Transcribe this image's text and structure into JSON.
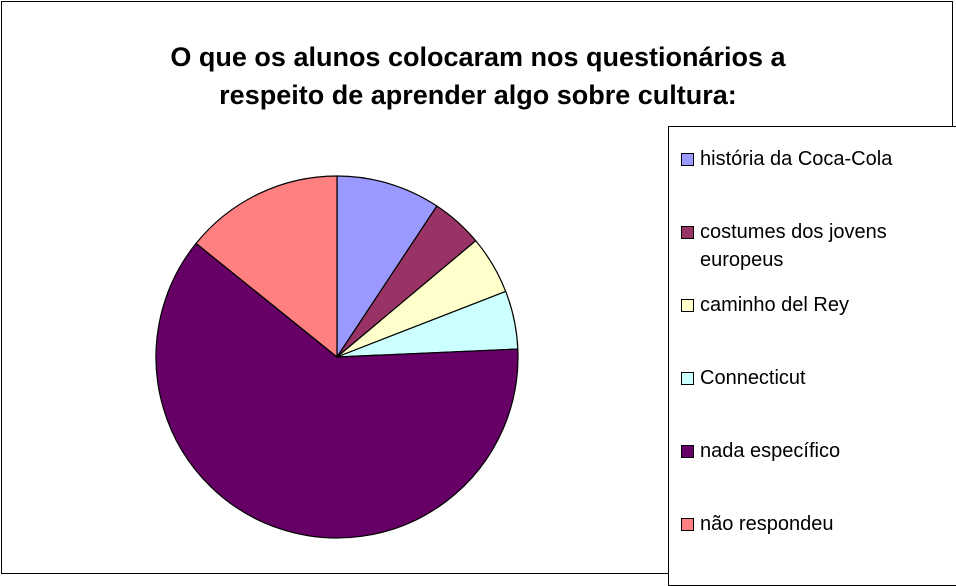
{
  "chart_data": {
    "type": "pie",
    "title": "O que os alunos colocaram nos questionários a\nrespeito de aprender algo sobre cultura:",
    "categories": [
      "história da Coca-Cola",
      "costumes dos jovens europeus",
      "caminho del Rey",
      "Connecticut",
      "nada específico",
      "não respondeu"
    ],
    "values": [
      9.3,
      4.6,
      5.2,
      5.2,
      61.5,
      14.2
    ],
    "colors": [
      "#9999ff",
      "#993366",
      "#ffffcc",
      "#ccffff",
      "#660066",
      "#ff8080"
    ],
    "legend_position": "right"
  }
}
